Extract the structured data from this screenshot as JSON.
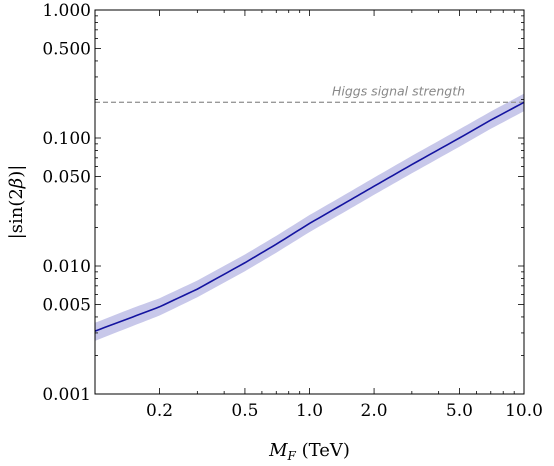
{
  "chart_data": {
    "type": "line",
    "title": "",
    "xlabel": "M_F (TeV)",
    "ylabel": "|sin(2β)|",
    "xscale": "log",
    "yscale": "log",
    "xlim": [
      0.1,
      10.0
    ],
    "ylim": [
      0.001,
      1.0
    ],
    "grid": false,
    "x_ticks": [
      {
        "value": 0.2,
        "label": "0.2"
      },
      {
        "value": 0.5,
        "label": "0.5"
      },
      {
        "value": 1.0,
        "label": "1.0"
      },
      {
        "value": 2.0,
        "label": "2.0"
      },
      {
        "value": 5.0,
        "label": "5.0"
      },
      {
        "value": 10.0,
        "label": "10.0"
      }
    ],
    "y_ticks": [
      {
        "value": 0.001,
        "label": "0.001"
      },
      {
        "value": 0.005,
        "label": "0.005"
      },
      {
        "value": 0.01,
        "label": "0.010"
      },
      {
        "value": 0.05,
        "label": "0.050"
      },
      {
        "value": 0.1,
        "label": "0.100"
      },
      {
        "value": 0.5,
        "label": "0.500"
      },
      {
        "value": 1.0,
        "label": "1.000"
      }
    ],
    "series": [
      {
        "color": "#1414a0",
        "x": [
          0.1,
          0.15,
          0.2,
          0.3,
          0.5,
          0.7,
          1.0,
          1.5,
          2.0,
          3.0,
          5.0,
          7.0,
          10.0
        ],
        "y": [
          0.0031,
          0.004,
          0.0048,
          0.0066,
          0.0106,
          0.0148,
          0.0215,
          0.0318,
          0.042,
          0.062,
          0.1,
          0.138,
          0.19
        ],
        "band_low": [
          0.0026,
          0.0034,
          0.0041,
          0.0057,
          0.0091,
          0.0127,
          0.0184,
          0.0272,
          0.036,
          0.053,
          0.0855,
          0.118,
          0.162
        ],
        "band_high": [
          0.0036,
          0.0047,
          0.0056,
          0.0077,
          0.0123,
          0.0172,
          0.025,
          0.037,
          0.049,
          0.0725,
          0.117,
          0.161,
          0.222
        ],
        "band_color": "#c8c8ea"
      }
    ],
    "reference_lines": [
      {
        "y": 0.19,
        "style": "dashed",
        "color": "#999999",
        "label": "Higgs signal strength"
      }
    ]
  }
}
